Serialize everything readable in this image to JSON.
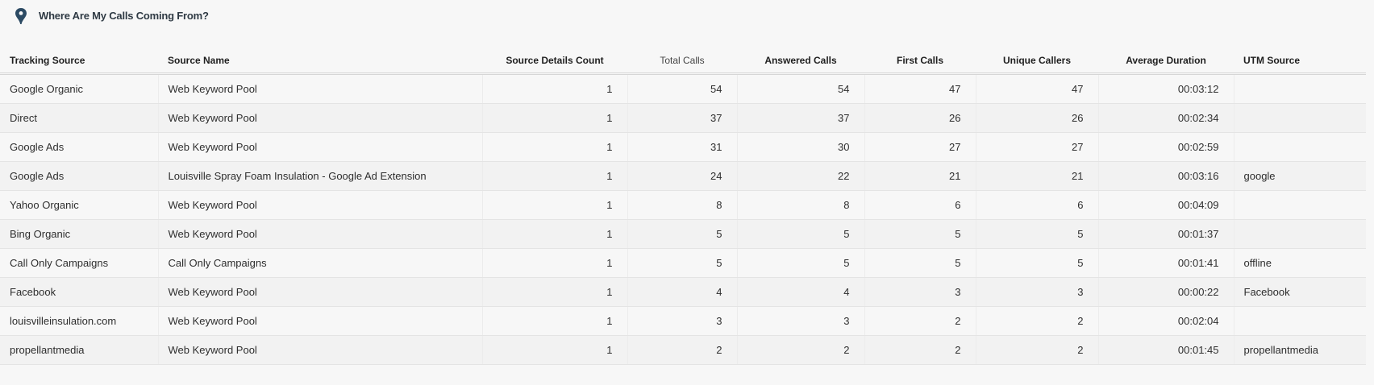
{
  "widget": {
    "title": "Where Are My Calls Coming From?",
    "icon": "map-pin-icon",
    "accent_color": "#2c4a63"
  },
  "table": {
    "columns": [
      {
        "key": "tracking_source",
        "label": "Tracking Source"
      },
      {
        "key": "source_name",
        "label": "Source Name"
      },
      {
        "key": "source_details_count",
        "label": "Source Details Count"
      },
      {
        "key": "total_calls",
        "label": "Total Calls"
      },
      {
        "key": "answered_calls",
        "label": "Answered Calls"
      },
      {
        "key": "first_calls",
        "label": "First Calls"
      },
      {
        "key": "unique_callers",
        "label": "Unique Callers"
      },
      {
        "key": "average_duration",
        "label": "Average Duration"
      },
      {
        "key": "utm_source",
        "label": "UTM Source"
      }
    ],
    "rows": [
      [
        "Google Organic",
        "Web Keyword Pool",
        "1",
        "54",
        "54",
        "47",
        "47",
        "00:03:12",
        ""
      ],
      [
        "Direct",
        "Web Keyword Pool",
        "1",
        "37",
        "37",
        "26",
        "26",
        "00:02:34",
        ""
      ],
      [
        "Google Ads",
        "Web Keyword Pool",
        "1",
        "31",
        "30",
        "27",
        "27",
        "00:02:59",
        ""
      ],
      [
        "Google Ads",
        "Louisville Spray Foam Insulation - Google Ad Extension",
        "1",
        "24",
        "22",
        "21",
        "21",
        "00:03:16",
        "google"
      ],
      [
        "Yahoo Organic",
        "Web Keyword Pool",
        "1",
        "8",
        "8",
        "6",
        "6",
        "00:04:09",
        ""
      ],
      [
        "Bing Organic",
        "Web Keyword Pool",
        "1",
        "5",
        "5",
        "5",
        "5",
        "00:01:37",
        ""
      ],
      [
        "Call Only Campaigns",
        "Call Only Campaigns",
        "1",
        "5",
        "5",
        "5",
        "5",
        "00:01:41",
        "offline"
      ],
      [
        "Facebook",
        "Web Keyword Pool",
        "1",
        "4",
        "4",
        "3",
        "3",
        "00:00:22",
        "Facebook"
      ],
      [
        "louisvilleinsulation.com",
        "Web Keyword Pool",
        "1",
        "3",
        "3",
        "2",
        "2",
        "00:02:04",
        ""
      ],
      [
        "propellantmedia",
        "Web Keyword Pool",
        "1",
        "2",
        "2",
        "2",
        "2",
        "00:01:45",
        "propellantmedia"
      ]
    ]
  }
}
